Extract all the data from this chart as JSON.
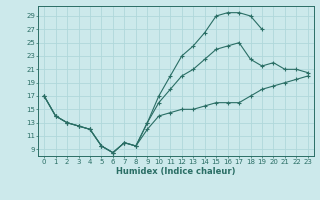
{
  "bg_color": "#cce9eb",
  "grid_color": "#b0d8db",
  "line_color": "#2a6e65",
  "xlabel": "Humidex (Indice chaleur)",
  "xlim": [
    -0.5,
    23.5
  ],
  "ylim": [
    8,
    30.5
  ],
  "yticks": [
    9,
    11,
    13,
    15,
    17,
    19,
    21,
    23,
    25,
    27,
    29
  ],
  "xticks": [
    0,
    1,
    2,
    3,
    4,
    5,
    6,
    7,
    8,
    9,
    10,
    11,
    12,
    13,
    14,
    15,
    16,
    17,
    18,
    19,
    20,
    21,
    22,
    23
  ],
  "curve_low_x": [
    0,
    1,
    2,
    3,
    4,
    5,
    6,
    7,
    8,
    9,
    10,
    11,
    12,
    13,
    14,
    15,
    16,
    17,
    18,
    19,
    20,
    21,
    22,
    23
  ],
  "curve_low_y": [
    17,
    14,
    13,
    12.5,
    12,
    9.5,
    8.5,
    10,
    9.5,
    12,
    14,
    14.5,
    15,
    15,
    15.5,
    16,
    16,
    16,
    17,
    18,
    18.5,
    19,
    19.5,
    20
  ],
  "curve_mid_x": [
    0,
    1,
    2,
    3,
    4,
    5,
    6,
    7,
    8,
    9,
    10,
    11,
    12,
    13,
    14,
    15,
    16,
    17,
    18,
    19,
    20,
    21,
    22,
    23
  ],
  "curve_mid_y": [
    17,
    14,
    13,
    12.5,
    12,
    9.5,
    8.5,
    10,
    9.5,
    13,
    16,
    18,
    20,
    21,
    22.5,
    24,
    24.5,
    25,
    22.5,
    21.5,
    22,
    21,
    21,
    20.5
  ],
  "curve_high_x": [
    0,
    1,
    2,
    3,
    4,
    5,
    6,
    7,
    8,
    9,
    10,
    11,
    12,
    13,
    14,
    15,
    16,
    17,
    18,
    19,
    20,
    21,
    22,
    23
  ],
  "curve_high_y": [
    17,
    14,
    13,
    12.5,
    12,
    9.5,
    8.5,
    10,
    9.5,
    13,
    17,
    20,
    23,
    24.5,
    26.5,
    29,
    29.5,
    29.5,
    29,
    27,
    null,
    null,
    null,
    null
  ]
}
